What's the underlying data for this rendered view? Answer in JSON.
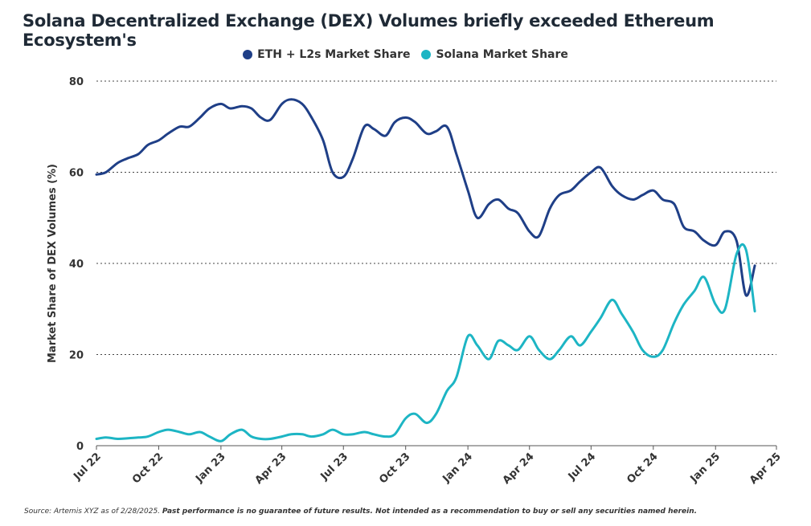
{
  "chart_data": {
    "type": "line",
    "title": "Solana Decentralized Exchange (DEX) Volumes briefly exceeded Ethereum Ecosystem's",
    "ylabel": "Market Share of DEX Volumes (%)",
    "xlabel": "",
    "ylim": [
      0,
      80
    ],
    "yticks": [
      "0",
      "20",
      "40",
      "60",
      "80"
    ],
    "xlim": [
      "2022-07-01",
      "2025-04-01"
    ],
    "xticks": [
      "Jul 22",
      "Oct 22",
      "Jan 23",
      "Apr 23",
      "Jul 23",
      "Oct 23",
      "Jan 24",
      "Apr 24",
      "Jul 24",
      "Oct 24",
      "Jan 25",
      "Apr 25"
    ],
    "grid": "horizontal-dotted",
    "legend_position": "top-center",
    "series": [
      {
        "name": "ETH + L2s Market Share",
        "color": "#1f3f87",
        "x": [
          "2022-07-01",
          "2022-07-15",
          "2022-08-01",
          "2022-08-15",
          "2022-09-01",
          "2022-09-15",
          "2022-10-01",
          "2022-10-15",
          "2022-11-01",
          "2022-11-15",
          "2022-12-01",
          "2022-12-15",
          "2023-01-01",
          "2023-01-15",
          "2023-02-01",
          "2023-02-15",
          "2023-03-01",
          "2023-03-15",
          "2023-04-01",
          "2023-04-15",
          "2023-05-01",
          "2023-05-15",
          "2023-06-01",
          "2023-06-15",
          "2023-07-01",
          "2023-07-15",
          "2023-08-01",
          "2023-08-15",
          "2023-09-01",
          "2023-09-15",
          "2023-10-01",
          "2023-10-15",
          "2023-11-01",
          "2023-11-15",
          "2023-12-01",
          "2023-12-15",
          "2024-01-01",
          "2024-01-15",
          "2024-02-01",
          "2024-02-15",
          "2024-03-01",
          "2024-03-15",
          "2024-04-01",
          "2024-04-15",
          "2024-05-01",
          "2024-05-15",
          "2024-06-01",
          "2024-06-15",
          "2024-07-01",
          "2024-07-15",
          "2024-08-01",
          "2024-08-15",
          "2024-09-01",
          "2024-09-15",
          "2024-10-01",
          "2024-10-15",
          "2024-11-01",
          "2024-11-15",
          "2024-12-01",
          "2024-12-15",
          "2025-01-01",
          "2025-01-15",
          "2025-02-01",
          "2025-02-15",
          "2025-02-28"
        ],
        "values": [
          59.5,
          60,
          62,
          63,
          64,
          66,
          67,
          68.5,
          70,
          70,
          72,
          74,
          75,
          74,
          74.5,
          74,
          72,
          71.5,
          75,
          76,
          75,
          72,
          67,
          60,
          59,
          63,
          70,
          69.5,
          68,
          71,
          72,
          71,
          68.5,
          69,
          70,
          64,
          56,
          50,
          53,
          54,
          52,
          51,
          47,
          46,
          52,
          55,
          56,
          58,
          60,
          61,
          57,
          55,
          54,
          55,
          56,
          54,
          53,
          48,
          47,
          45,
          44,
          47,
          45,
          33,
          39.5
        ]
      },
      {
        "name": "Solana Market Share",
        "color": "#1db5c4",
        "x": [
          "2022-07-01",
          "2022-07-15",
          "2022-08-01",
          "2022-08-15",
          "2022-09-01",
          "2022-09-15",
          "2022-10-01",
          "2022-10-15",
          "2022-11-01",
          "2022-11-15",
          "2022-12-01",
          "2022-12-15",
          "2023-01-01",
          "2023-01-15",
          "2023-02-01",
          "2023-02-15",
          "2023-03-01",
          "2023-03-15",
          "2023-04-01",
          "2023-04-15",
          "2023-05-01",
          "2023-05-15",
          "2023-06-01",
          "2023-06-15",
          "2023-07-01",
          "2023-07-15",
          "2023-08-01",
          "2023-08-15",
          "2023-09-01",
          "2023-09-15",
          "2023-10-01",
          "2023-10-15",
          "2023-11-01",
          "2023-11-15",
          "2023-12-01",
          "2023-12-15",
          "2024-01-01",
          "2024-01-15",
          "2024-02-01",
          "2024-02-15",
          "2024-03-01",
          "2024-03-15",
          "2024-04-01",
          "2024-04-15",
          "2024-05-01",
          "2024-05-15",
          "2024-06-01",
          "2024-06-15",
          "2024-07-01",
          "2024-07-15",
          "2024-08-01",
          "2024-08-15",
          "2024-09-01",
          "2024-09-15",
          "2024-10-01",
          "2024-10-15",
          "2024-11-01",
          "2024-11-15",
          "2024-12-01",
          "2024-12-15",
          "2025-01-01",
          "2025-01-15",
          "2025-02-01",
          "2025-02-15",
          "2025-02-28"
        ],
        "values": [
          1.5,
          1.8,
          1.5,
          1.6,
          1.8,
          2,
          3,
          3.5,
          3,
          2.5,
          3,
          2,
          1,
          2.5,
          3.5,
          2,
          1.5,
          1.5,
          2,
          2.5,
          2.5,
          2,
          2.5,
          3.5,
          2.5,
          2.5,
          3,
          2.5,
          2,
          2.5,
          6,
          7,
          5,
          7,
          12,
          15,
          24,
          22,
          19,
          23,
          22,
          21,
          24,
          21,
          19,
          21,
          24,
          22,
          25,
          28,
          32,
          29,
          25,
          21,
          19.5,
          21,
          27,
          31,
          34,
          37,
          31,
          30,
          42,
          43,
          29.5
        ]
      }
    ]
  },
  "footer": {
    "source": "Source: Artemis XYZ as of 2/28/2025.",
    "disclaimer": "Past performance is no guarantee of future results. Not intended as a recommendation to buy or sell any securities named herein."
  }
}
